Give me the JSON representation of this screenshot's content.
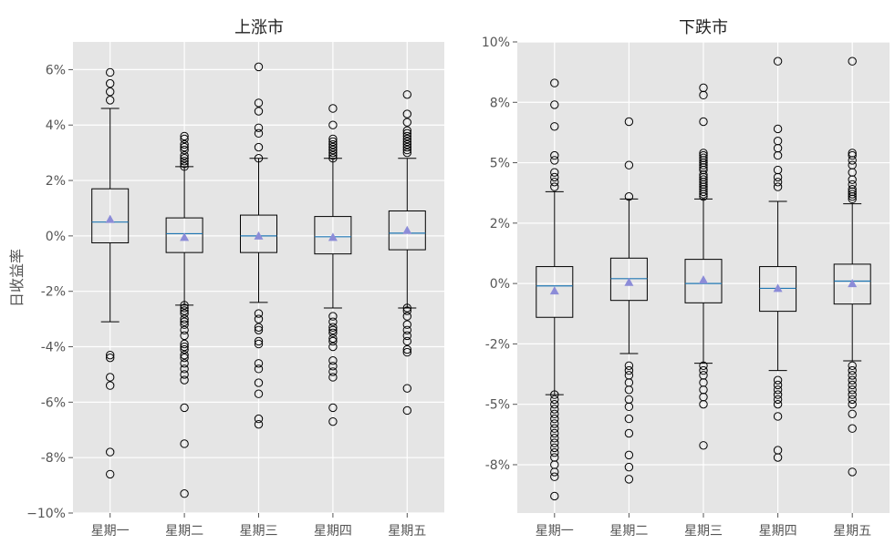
{
  "chart_data": [
    {
      "type": "box",
      "title": "上涨市",
      "ylabel": "日收益率",
      "xlabel": "",
      "categories": [
        "星期一",
        "星期二",
        "星期三",
        "星期四",
        "星期五"
      ],
      "ylim": [
        -0.1,
        0.07
      ],
      "yticks": [
        -0.1,
        -0.08,
        -0.06,
        -0.04,
        -0.02,
        0.0,
        0.02,
        0.04,
        0.06
      ],
      "ytick_labels": [
        "−10%",
        "-8%",
        "-6%",
        "-4%",
        "-2%",
        "0%",
        "2%",
        "4%",
        "6%"
      ],
      "grid": true,
      "boxes": [
        {
          "q1": -0.0025,
          "median": 0.005,
          "q3": 0.017,
          "whisker_low": -0.031,
          "whisker_high": 0.046,
          "mean": 0.006,
          "outliers": [
            0.059,
            0.055,
            0.052,
            0.049,
            -0.043,
            -0.044,
            -0.051,
            -0.054,
            -0.078,
            -0.086
          ]
        },
        {
          "q1": -0.006,
          "median": 0.0008,
          "q3": 0.0065,
          "whisker_low": -0.025,
          "whisker_high": 0.025,
          "mean": -0.0005,
          "outliers": [
            0.036,
            0.035,
            0.033,
            0.032,
            0.031,
            0.029,
            0.028,
            0.027,
            0.026,
            0.025,
            -0.025,
            -0.026,
            -0.027,
            -0.028,
            -0.03,
            -0.031,
            -0.032,
            -0.034,
            -0.036,
            -0.039,
            -0.04,
            -0.041,
            -0.043,
            -0.044,
            -0.046,
            -0.048,
            -0.05,
            -0.052,
            -0.062,
            -0.075,
            -0.093
          ]
        },
        {
          "q1": -0.006,
          "median": 0.0,
          "q3": 0.0075,
          "whisker_low": -0.024,
          "whisker_high": 0.028,
          "mean": 0.0,
          "outliers": [
            0.061,
            0.048,
            0.045,
            0.039,
            0.037,
            0.032,
            0.028,
            -0.028,
            -0.03,
            -0.033,
            -0.034,
            -0.038,
            -0.039,
            -0.046,
            -0.048,
            -0.053,
            -0.057,
            -0.066,
            -0.068
          ]
        },
        {
          "q1": -0.0065,
          "median": -0.0003,
          "q3": 0.007,
          "whisker_low": -0.026,
          "whisker_high": 0.028,
          "mean": -0.0005,
          "outliers": [
            0.046,
            0.04,
            0.035,
            0.034,
            0.033,
            0.032,
            0.031,
            0.03,
            0.029,
            0.028,
            -0.029,
            -0.031,
            -0.033,
            -0.034,
            -0.035,
            -0.037,
            -0.038,
            -0.04,
            -0.045,
            -0.047,
            -0.049,
            -0.051,
            -0.062,
            -0.067
          ]
        },
        {
          "q1": -0.005,
          "median": 0.001,
          "q3": 0.009,
          "whisker_low": -0.026,
          "whisker_high": 0.028,
          "mean": 0.002,
          "outliers": [
            0.051,
            0.044,
            0.041,
            0.038,
            0.037,
            0.036,
            0.035,
            0.034,
            0.033,
            0.032,
            0.031,
            0.03,
            -0.026,
            -0.027,
            -0.029,
            -0.032,
            -0.034,
            -0.036,
            -0.038,
            -0.041,
            -0.042,
            -0.055,
            -0.063
          ]
        }
      ]
    },
    {
      "type": "box",
      "title": "下跌市",
      "ylabel": "",
      "xlabel": "",
      "categories": [
        "星期一",
        "星期二",
        "星期三",
        "星期四",
        "星期五"
      ],
      "ylim": [
        -0.095,
        0.1
      ],
      "yticks": [
        -0.075,
        -0.05,
        -0.025,
        0.0,
        0.025,
        0.05,
        0.075,
        0.1
      ],
      "ytick_labels": [
        "-8%",
        "-5%",
        "-2%",
        "0%",
        "2%",
        "5%",
        "8%",
        "10%"
      ],
      "grid": true,
      "boxes": [
        {
          "q1": -0.014,
          "median": -0.001,
          "q3": 0.007,
          "whisker_low": -0.046,
          "whisker_high": 0.038,
          "mean": -0.003,
          "outliers": [
            0.083,
            0.074,
            0.065,
            0.053,
            0.051,
            0.046,
            0.044,
            0.042,
            0.04,
            -0.046,
            -0.048,
            -0.05,
            -0.052,
            -0.054,
            -0.056,
            -0.058,
            -0.06,
            -0.062,
            -0.064,
            -0.066,
            -0.068,
            -0.07,
            -0.072,
            -0.075,
            -0.078,
            -0.08,
            -0.088
          ]
        },
        {
          "q1": -0.007,
          "median": 0.002,
          "q3": 0.0105,
          "whisker_low": -0.029,
          "whisker_high": 0.035,
          "mean": 0.0005,
          "outliers": [
            0.067,
            0.049,
            0.036,
            -0.034,
            -0.036,
            -0.038,
            -0.041,
            -0.044,
            -0.048,
            -0.051,
            -0.056,
            -0.062,
            -0.071,
            -0.076,
            -0.081
          ]
        },
        {
          "q1": -0.008,
          "median": 0.0,
          "q3": 0.01,
          "whisker_low": -0.033,
          "whisker_high": 0.035,
          "mean": 0.0015,
          "outliers": [
            0.081,
            0.078,
            0.067,
            0.054,
            0.053,
            0.052,
            0.051,
            0.05,
            0.049,
            0.048,
            0.047,
            0.045,
            0.044,
            0.043,
            0.042,
            0.041,
            0.04,
            0.039,
            0.038,
            0.037,
            0.036,
            -0.034,
            -0.036,
            -0.038,
            -0.041,
            -0.044,
            -0.047,
            -0.05,
            -0.067
          ]
        },
        {
          "q1": -0.0115,
          "median": -0.002,
          "q3": 0.007,
          "whisker_low": -0.036,
          "whisker_high": 0.034,
          "mean": -0.002,
          "outliers": [
            0.092,
            0.064,
            0.059,
            0.056,
            0.053,
            0.047,
            0.044,
            0.042,
            0.04,
            -0.04,
            -0.042,
            -0.044,
            -0.046,
            -0.048,
            -0.05,
            -0.055,
            -0.069,
            -0.072
          ]
        },
        {
          "q1": -0.0085,
          "median": 0.001,
          "q3": 0.008,
          "whisker_low": -0.032,
          "whisker_high": 0.033,
          "mean": 0.0,
          "outliers": [
            0.092,
            0.054,
            0.053,
            0.051,
            0.049,
            0.046,
            0.043,
            0.041,
            0.039,
            0.038,
            0.037,
            0.036,
            0.035,
            -0.034,
            -0.036,
            -0.038,
            -0.04,
            -0.042,
            -0.044,
            -0.046,
            -0.048,
            -0.05,
            -0.054,
            -0.06,
            -0.078
          ]
        }
      ]
    }
  ]
}
